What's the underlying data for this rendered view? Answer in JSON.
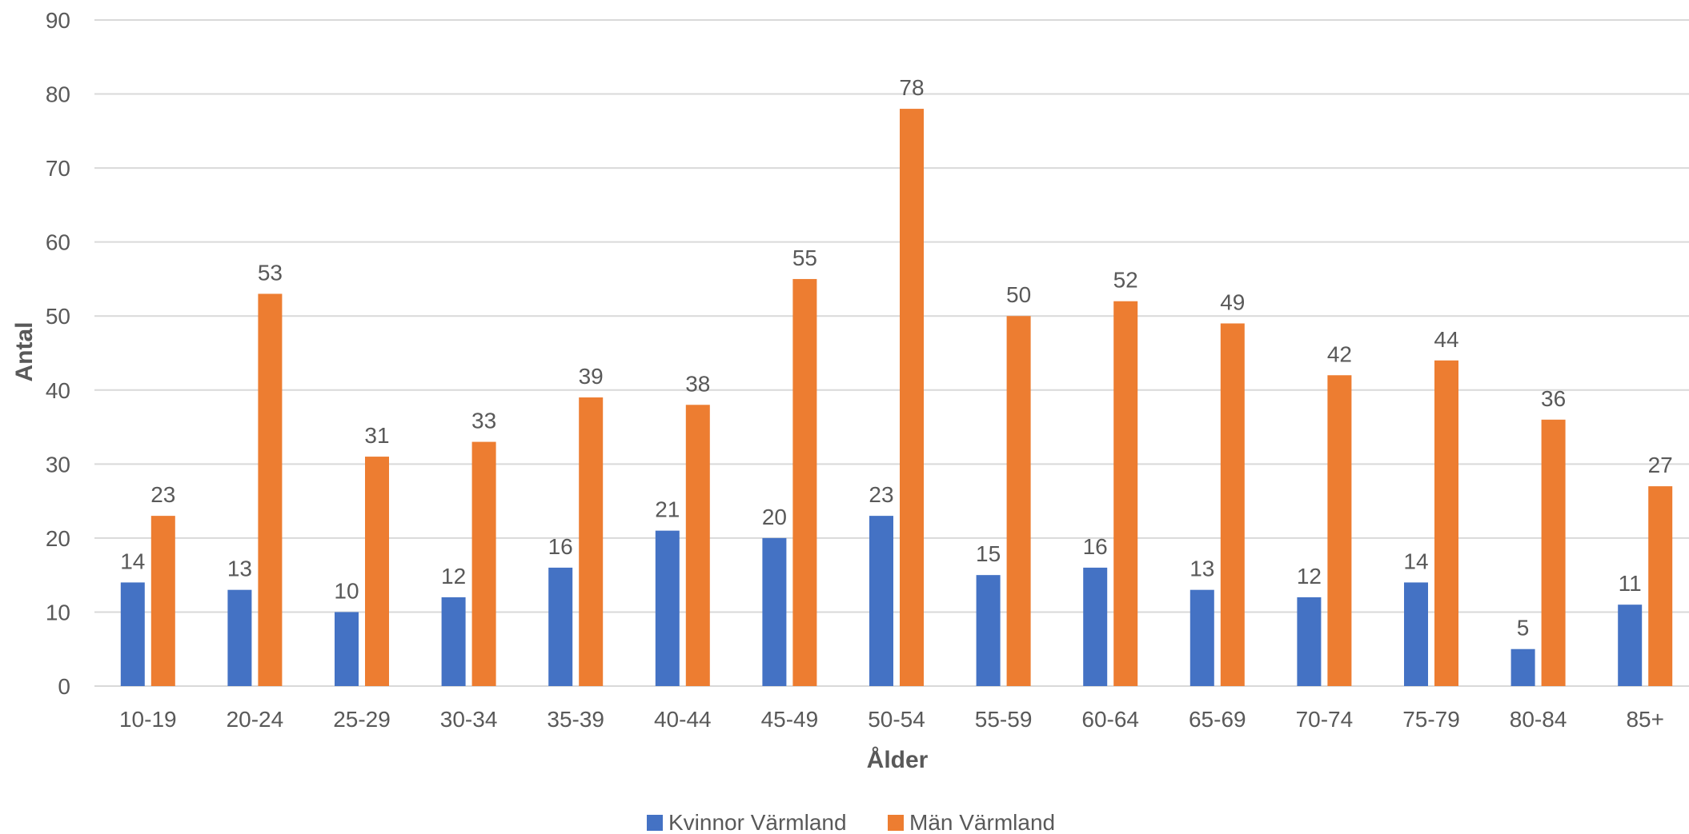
{
  "chart_data": {
    "type": "bar",
    "categories": [
      "10-19",
      "20-24",
      "25-29",
      "30-34",
      "35-39",
      "40-44",
      "45-49",
      "50-54",
      "55-59",
      "60-64",
      "65-69",
      "70-74",
      "75-79",
      "80-84",
      "85+"
    ],
    "series": [
      {
        "name": "Kvinnor Värmland",
        "color": "#4472C4",
        "values": [
          14,
          13,
          10,
          12,
          16,
          21,
          20,
          23,
          15,
          16,
          13,
          12,
          14,
          5,
          11
        ]
      },
      {
        "name": "Män Värmland",
        "color": "#ED7D31",
        "values": [
          23,
          53,
          31,
          33,
          39,
          38,
          55,
          78,
          50,
          52,
          49,
          42,
          44,
          36,
          27
        ]
      }
    ],
    "xlabel": "Ålder",
    "ylabel": "Antal",
    "ylim": [
      0,
      90
    ],
    "yticks": [
      0,
      10,
      20,
      30,
      40,
      50,
      60,
      70,
      80,
      90
    ],
    "grid": true,
    "legend_position": "bottom",
    "data_labels": true
  }
}
